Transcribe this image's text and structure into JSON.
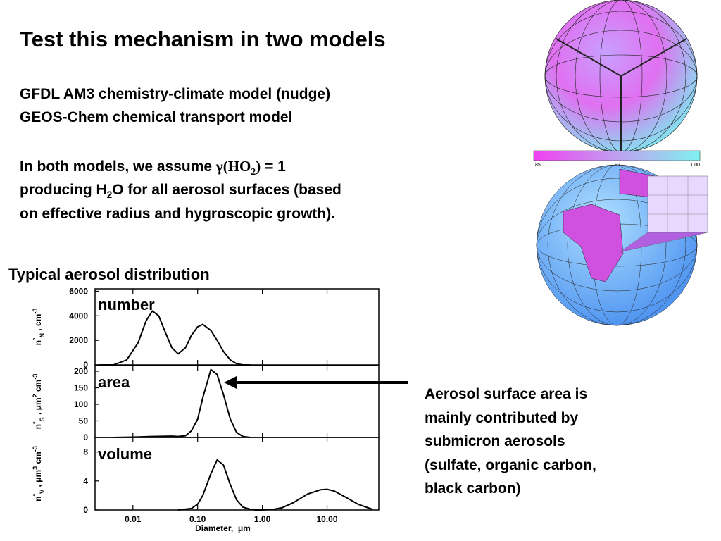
{
  "title": "Test this mechanism in two models",
  "models": [
    "GFDL AM3 chemistry-climate model (nudge)",
    "GEOS-Chem chemical transport model"
  ],
  "assumption": {
    "lead": "In both models, we assume ",
    "gamma": "γ(HO",
    "gamma_sub": "2",
    "gamma_close": ")",
    "equals": " = 1",
    "line2_start": "producing H",
    "h2o_sub": "2",
    "line2_end": "O for all aerosol surfaces (based",
    "line3": "on effective radius and hygroscopic growth)."
  },
  "figure_title": "Typical aerosol distribution",
  "annotation_lines": [
    "Aerosol surface area is",
    "mainly contributed by",
    "submicron aerosols",
    "(sulfate, organic carbon,",
    "black carbon)"
  ],
  "colorbar_labels": [
    ".85",
    ".92",
    "1.00"
  ],
  "chart_data": [
    {
      "type": "line",
      "title": "number",
      "log_x": true,
      "xlim": [
        0.0026,
        63
      ],
      "ylim": [
        0,
        6200
      ],
      "yticks": [
        0,
        2000,
        4000,
        6000
      ],
      "ylabel": [
        {
          "text": "n"
        },
        {
          "text": "°",
          "pos": "super"
        },
        {
          "text": "N",
          "pos": "sub"
        },
        {
          "text": " , cm"
        },
        {
          "text": "-3",
          "pos": "super"
        }
      ],
      "x": [
        0.003,
        0.005,
        0.008,
        0.012,
        0.016,
        0.02,
        0.025,
        0.032,
        0.04,
        0.05,
        0.065,
        0.08,
        0.1,
        0.12,
        0.16,
        0.2,
        0.25,
        0.32,
        0.4,
        0.5,
        0.65
      ],
      "values": [
        0,
        0,
        400,
        1800,
        3600,
        4400,
        4000,
        2600,
        1400,
        900,
        1400,
        2400,
        3100,
        3300,
        2800,
        2000,
        1100,
        400,
        100,
        0,
        0
      ]
    },
    {
      "type": "line",
      "title": "area",
      "log_x": true,
      "xlim": [
        0.0026,
        63
      ],
      "ylim": [
        0,
        217
      ],
      "yticks": [
        0,
        50,
        100,
        150,
        200
      ],
      "ylabel": [
        {
          "text": "n"
        },
        {
          "text": "°",
          "pos": "super"
        },
        {
          "text": "S",
          "pos": "sub"
        },
        {
          "text": " , μm"
        },
        {
          "text": "2",
          "pos": "super"
        },
        {
          "text": " cm"
        },
        {
          "text": "-3",
          "pos": "super"
        }
      ],
      "x": [
        0.005,
        0.01,
        0.02,
        0.04,
        0.05,
        0.065,
        0.08,
        0.1,
        0.12,
        0.16,
        0.2,
        0.25,
        0.32,
        0.4,
        0.5,
        0.65
      ],
      "values": [
        0,
        1,
        3,
        4,
        3,
        5,
        20,
        55,
        120,
        205,
        190,
        130,
        55,
        15,
        3,
        0
      ]
    },
    {
      "type": "line",
      "title": "volume",
      "log_x": true,
      "xlim": [
        0.0026,
        63
      ],
      "ylim": [
        0,
        10
      ],
      "yticks": [
        0,
        4,
        8
      ],
      "ylabel": [
        {
          "text": "n"
        },
        {
          "text": "°",
          "pos": "super"
        },
        {
          "text": "V",
          "pos": "sub"
        },
        {
          "text": " , μm"
        },
        {
          "text": "3",
          "pos": "super"
        },
        {
          "text": " cm"
        },
        {
          "text": "-3",
          "pos": "super"
        }
      ],
      "xticks": [
        0.01,
        {
          "value": 0.1,
          "label": "0.10"
        },
        {
          "value": 1,
          "label": "1.00"
        },
        {
          "value": 10,
          "label": "10.00"
        }
      ],
      "xlabel": "Diameter,  μm",
      "x": [
        0.05,
        0.08,
        0.1,
        0.12,
        0.16,
        0.2,
        0.25,
        0.32,
        0.4,
        0.5,
        0.65,
        0.8,
        1,
        1.5,
        2,
        3,
        5,
        8,
        10,
        13,
        20,
        30,
        50
      ],
      "values": [
        0,
        0.2,
        0.8,
        2,
        5,
        6.9,
        6.2,
        3.5,
        1.4,
        0.4,
        0.1,
        0,
        0,
        0.1,
        0.3,
        1,
        2.2,
        2.8,
        2.85,
        2.6,
        1.7,
        0.8,
        0.1
      ]
    }
  ]
}
